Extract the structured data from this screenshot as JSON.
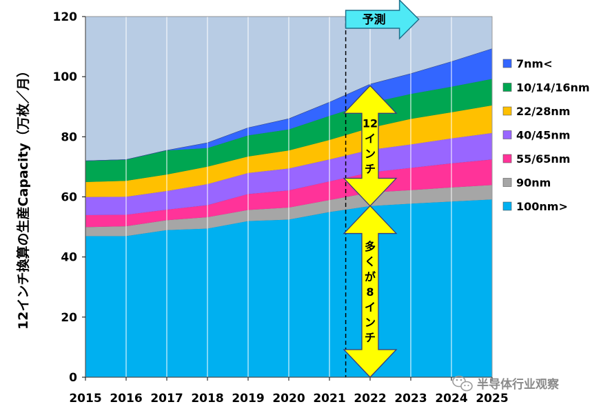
{
  "chart_data": {
    "type": "area",
    "stacked": true,
    "x": [
      2015,
      2016,
      2017,
      2018,
      2019,
      2020,
      2021,
      2022,
      2023,
      2024,
      2025
    ],
    "ylabel": "12インチ換算の生産Capacity（万枚／月）",
    "ylim": [
      0,
      120
    ],
    "yticks": [
      0,
      20,
      40,
      60,
      80,
      100,
      120
    ],
    "grid": "vertical",
    "legend_position": "right",
    "plot_background": "#B8CCE4",
    "series": [
      {
        "name": "100nm>",
        "color": "#00B0F0",
        "values": [
          47,
          47,
          49,
          49.5,
          52,
          52.5,
          55,
          57,
          57.8,
          58.5,
          59.2
        ]
      },
      {
        "name": "90nm",
        "color": "#A6A6A6",
        "values": [
          3,
          3.3,
          3.3,
          3.8,
          3.7,
          4,
          4,
          4.5,
          4.5,
          4.7,
          4.8
        ]
      },
      {
        "name": "55/65nm",
        "color": "#FF3399",
        "values": [
          4,
          3.8,
          3.5,
          4,
          5.3,
          5.7,
          6.2,
          6.7,
          7.4,
          8,
          8.5
        ]
      },
      {
        "name": "40/45nm",
        "color": "#9966FF",
        "values": [
          6,
          6,
          6.2,
          7,
          7,
          7.3,
          7.3,
          7.5,
          7.8,
          8.3,
          8.8
        ]
      },
      {
        "name": "22/28nm",
        "color": "#FFC000",
        "values": [
          5,
          5.3,
          5.5,
          5.8,
          5.5,
          6,
          6.5,
          7.3,
          8.5,
          8.7,
          9.2
        ]
      },
      {
        "name": "10/14/16nm",
        "color": "#00A651",
        "values": [
          7,
          7,
          8,
          6.2,
          7,
          7,
          8,
          8.3,
          8.3,
          8.5,
          8.8
        ]
      },
      {
        "name": "7nm<",
        "color": "#3366FF",
        "values": [
          0,
          0,
          0,
          1.7,
          2.5,
          3.5,
          4.5,
          6.2,
          6.7,
          8.3,
          10
        ]
      }
    ],
    "forecast": {
      "label": "予測",
      "start_x": 2021.4
    },
    "annotations": [
      {
        "text": [
          "12",
          "イ",
          "ン",
          "チ"
        ],
        "x": 2022,
        "y_range": [
          57,
          97
        ],
        "fill": "#FFFF00"
      },
      {
        "text": [
          "多",
          "く",
          "が",
          "8",
          "イ",
          "ン",
          "チ"
        ],
        "x": 2022,
        "y_range": [
          0,
          57
        ],
        "fill": "#FFFF00"
      }
    ]
  },
  "watermark": {
    "text": "半导体行业观察"
  }
}
